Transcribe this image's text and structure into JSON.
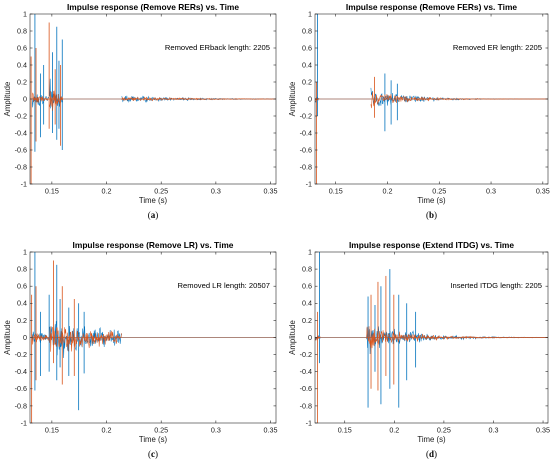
{
  "chart_data": [
    {
      "type": "line",
      "title": "Impulse response (Remove RERs) vs. Time",
      "xlabel": "Time (s)",
      "ylabel": "Amplitude",
      "xlim": [
        0.13,
        0.355
      ],
      "ylim": [
        -1,
        1
      ],
      "xticks": [
        0.15,
        0.2,
        0.25,
        0.3,
        0.35
      ],
      "xtick_labels": [
        "0.15",
        "0.2",
        "0.25",
        "0.3",
        "0.35"
      ],
      "yticks": [
        -1,
        -0.8,
        -0.6,
        -0.4,
        -0.2,
        0,
        0.2,
        0.4,
        0.6,
        0.8,
        1
      ],
      "ytick_labels": [
        "-1",
        "-0.8",
        "-0.6",
        "-0.4",
        "-0.2",
        "0",
        "0.2",
        "0.4",
        "0.6",
        "0.8",
        "1"
      ],
      "annotation": "Removed ERback length: 2205",
      "caption": "(a)",
      "series": [
        {
          "color": "#0072bd",
          "segments": [
            {
              "start": 0.132,
              "end": 0.148,
              "amp": 0.18,
              "decay": 0.35
            },
            {
              "start": 0.148,
              "end": 0.16,
              "amp": 0.3,
              "decay": 0.4
            },
            {
              "start": 0.214,
              "end": 0.355,
              "amp": 0.05,
              "decay": 0.25
            }
          ],
          "spikes": [
            {
              "x": 0.1345,
              "lo": -0.62,
              "hi": 1.0
            },
            {
              "x": 0.1395,
              "lo": -0.45,
              "hi": 0.3
            },
            {
              "x": 0.1425,
              "lo": -0.3,
              "hi": 0.4
            },
            {
              "x": 0.1505,
              "lo": -0.4,
              "hi": 0.55
            },
            {
              "x": 0.1545,
              "lo": -0.48,
              "hi": 0.85
            },
            {
              "x": 0.1565,
              "lo": -0.35,
              "hi": 0.45
            },
            {
              "x": 0.1595,
              "lo": -0.6,
              "hi": 0.7
            }
          ]
        },
        {
          "color": "#d95319",
          "segments": [
            {
              "start": 0.132,
              "end": 0.148,
              "amp": 0.12,
              "decay": 0.35
            },
            {
              "start": 0.148,
              "end": 0.16,
              "amp": 0.25,
              "decay": 0.4
            },
            {
              "start": 0.214,
              "end": 0.355,
              "amp": 0.04,
              "decay": 0.25
            }
          ],
          "spikes": [
            {
              "x": 0.131,
              "lo": -1.0,
              "hi": 0.5
            },
            {
              "x": 0.1355,
              "lo": -0.5,
              "hi": 0.6
            },
            {
              "x": 0.1475,
              "lo": -0.35,
              "hi": 0.9
            },
            {
              "x": 0.153,
              "lo": -0.3,
              "hi": 0.35
            },
            {
              "x": 0.158,
              "lo": -0.55,
              "hi": 0.4
            }
          ]
        }
      ]
    },
    {
      "type": "line",
      "title": "Impulse response (Remove FERs) vs. Time",
      "xlabel": "Time (s)",
      "ylabel": "Amplitude",
      "xlim": [
        0.13,
        0.355
      ],
      "ylim": [
        -1,
        1
      ],
      "xticks": [
        0.15,
        0.2,
        0.25,
        0.3,
        0.35
      ],
      "xtick_labels": [
        "0.15",
        "0.2",
        "0.25",
        "0.3",
        "0.35"
      ],
      "yticks": [
        -1,
        -0.8,
        -0.6,
        -0.4,
        -0.2,
        0,
        0.2,
        0.4,
        0.6,
        0.8,
        1
      ],
      "ytick_labels": [
        "-1",
        "-0.8",
        "-0.6",
        "-0.4",
        "-0.2",
        "0",
        "0.2",
        "0.4",
        "0.6",
        "0.8",
        "1"
      ],
      "annotation": "Removed ER length: 2205",
      "caption": "(b)",
      "series": [
        {
          "color": "#0072bd",
          "segments": [
            {
              "start": 0.13,
              "end": 0.134,
              "amp": 0.08,
              "decay": 0.5
            },
            {
              "start": 0.184,
              "end": 0.355,
              "amp": 0.16,
              "decay": 0.12
            }
          ],
          "spikes": [
            {
              "x": 0.1325,
              "lo": -0.2,
              "hi": 1.0
            },
            {
              "x": 0.1975,
              "lo": -0.38,
              "hi": 0.3
            },
            {
              "x": 0.2035,
              "lo": -0.3,
              "hi": 0.22
            },
            {
              "x": 0.2095,
              "lo": -0.25,
              "hi": 0.18
            }
          ]
        },
        {
          "color": "#d95319",
          "segments": [
            {
              "start": 0.13,
              "end": 0.134,
              "amp": 0.06,
              "decay": 0.5
            },
            {
              "start": 0.184,
              "end": 0.355,
              "amp": 0.13,
              "decay": 0.12
            }
          ],
          "spikes": [
            {
              "x": 0.1315,
              "lo": -1.0,
              "hi": 0.2
            },
            {
              "x": 0.1875,
              "lo": -0.22,
              "hi": 0.26
            }
          ]
        }
      ]
    },
    {
      "type": "line",
      "title": "Impulse response (Remove LR) vs. Time",
      "xlabel": "Time (s)",
      "ylabel": "Amplitude",
      "xlim": [
        0.13,
        0.355
      ],
      "ylim": [
        -1,
        1
      ],
      "xticks": [
        0.15,
        0.2,
        0.25,
        0.3,
        0.35
      ],
      "xtick_labels": [
        "0.15",
        "0.2",
        "0.25",
        "0.3",
        "0.35"
      ],
      "yticks": [
        -1,
        -0.8,
        -0.6,
        -0.4,
        -0.2,
        0,
        0.2,
        0.4,
        0.6,
        0.8,
        1
      ],
      "ytick_labels": [
        "-1",
        "-0.8",
        "-0.6",
        "-0.4",
        "-0.2",
        "0",
        "0.2",
        "0.4",
        "0.6",
        "0.8",
        "1"
      ],
      "annotation": "Removed LR length: 20507",
      "caption": "(c)",
      "series": [
        {
          "color": "#0072bd",
          "segments": [
            {
              "start": 0.132,
              "end": 0.148,
              "amp": 0.14,
              "decay": 0.5
            },
            {
              "start": 0.148,
              "end": 0.214,
              "amp": 0.3,
              "decay": 0.55
            }
          ],
          "spikes": [
            {
              "x": 0.1345,
              "lo": -0.62,
              "hi": 1.0
            },
            {
              "x": 0.1395,
              "lo": -0.45,
              "hi": 0.3
            },
            {
              "x": 0.1475,
              "lo": -0.4,
              "hi": 0.5
            },
            {
              "x": 0.1545,
              "lo": -0.5,
              "hi": 0.85
            },
            {
              "x": 0.1575,
              "lo": -0.35,
              "hi": 0.45
            },
            {
              "x": 0.1655,
              "lo": -0.45,
              "hi": 0.35
            },
            {
              "x": 0.1745,
              "lo": -0.85,
              "hi": 0.4
            },
            {
              "x": 0.1795,
              "lo": -0.42,
              "hi": 0.3
            }
          ]
        },
        {
          "color": "#d95319",
          "segments": [
            {
              "start": 0.132,
              "end": 0.148,
              "amp": 0.1,
              "decay": 0.5
            },
            {
              "start": 0.148,
              "end": 0.214,
              "amp": 0.25,
              "decay": 0.55
            }
          ],
          "spikes": [
            {
              "x": 0.1315,
              "lo": -1.0,
              "hi": 0.5
            },
            {
              "x": 0.1355,
              "lo": -0.5,
              "hi": 0.6
            },
            {
              "x": 0.1515,
              "lo": -0.3,
              "hi": 0.9
            },
            {
              "x": 0.1595,
              "lo": -0.55,
              "hi": 0.6
            },
            {
              "x": 0.1705,
              "lo": -0.45,
              "hi": 0.45
            }
          ]
        }
      ]
    },
    {
      "type": "line",
      "title": "Impulse response (Extend ITDG) vs. Time",
      "xlabel": "Time (s)",
      "ylabel": "Amplitude",
      "xlim": [
        0.12,
        0.355
      ],
      "ylim": [
        -1,
        1
      ],
      "xticks": [
        0.15,
        0.2,
        0.25,
        0.3,
        0.35
      ],
      "xtick_labels": [
        "0.15",
        "0.2",
        "0.25",
        "0.3",
        "0.35"
      ],
      "yticks": [
        -1,
        -0.8,
        -0.6,
        -0.4,
        -0.2,
        0,
        0.2,
        0.4,
        0.6,
        0.8,
        1
      ],
      "ytick_labels": [
        "-1",
        "-0.8",
        "-0.6",
        "-0.4",
        "-0.2",
        "0",
        "0.2",
        "0.4",
        "0.6",
        "0.8",
        "1"
      ],
      "annotation": "Inserted ITDG length: 2205",
      "caption": "(d)",
      "series": [
        {
          "color": "#0072bd",
          "segments": [
            {
              "start": 0.12,
              "end": 0.126,
              "amp": 0.06,
              "decay": 0.5
            },
            {
              "start": 0.172,
              "end": 0.355,
              "amp": 0.22,
              "decay": 0.14
            }
          ],
          "spikes": [
            {
              "x": 0.1245,
              "lo": -0.3,
              "hi": 1.0
            },
            {
              "x": 0.1735,
              "lo": -0.82,
              "hi": 0.48
            },
            {
              "x": 0.1805,
              "lo": -0.4,
              "hi": 0.38
            },
            {
              "x": 0.1865,
              "lo": -0.78,
              "hi": 0.6
            },
            {
              "x": 0.1955,
              "lo": -0.6,
              "hi": 0.8
            },
            {
              "x": 0.2045,
              "lo": -0.82,
              "hi": 0.5
            },
            {
              "x": 0.2125,
              "lo": -0.5,
              "hi": 0.4
            },
            {
              "x": 0.2215,
              "lo": -0.35,
              "hi": 0.3
            }
          ]
        },
        {
          "color": "#d95319",
          "segments": [
            {
              "start": 0.12,
              "end": 0.126,
              "amp": 0.05,
              "decay": 0.5
            },
            {
              "start": 0.172,
              "end": 0.355,
              "amp": 0.18,
              "decay": 0.14
            }
          ],
          "spikes": [
            {
              "x": 0.1225,
              "lo": -1.0,
              "hi": 0.3
            },
            {
              "x": 0.1765,
              "lo": -0.6,
              "hi": 0.5
            },
            {
              "x": 0.1835,
              "lo": -0.62,
              "hi": 0.65
            },
            {
              "x": 0.1915,
              "lo": -0.45,
              "hi": 0.72
            },
            {
              "x": 0.1995,
              "lo": -0.55,
              "hi": 0.5
            }
          ]
        }
      ]
    }
  ]
}
